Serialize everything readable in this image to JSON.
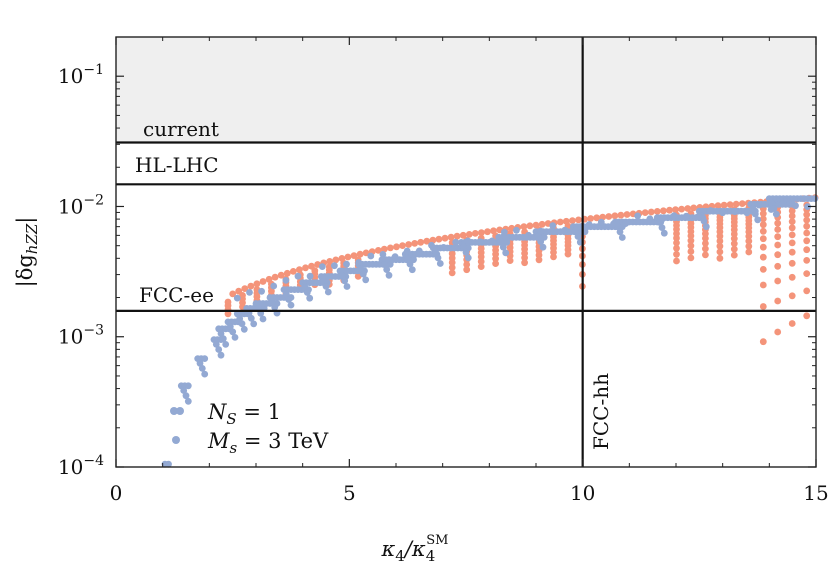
{
  "chart_data": {
    "type": "scatter",
    "title": "",
    "xlabel": "κ4/κ4SM",
    "ylabel": "|δghZZ|",
    "xlim": [
      0,
      15
    ],
    "ylim": [
      0.0001,
      0.2
    ],
    "yscale": "log",
    "x_ticks": [
      0,
      5,
      10,
      15
    ],
    "x_tick_labels": [
      "0",
      "5",
      "10",
      "15"
    ],
    "y_ticks": [
      0.0001,
      0.001,
      0.01,
      0.1
    ],
    "y_tick_labels": [
      {
        "base": "10",
        "exp": "−4"
      },
      {
        "base": "10",
        "exp": "−3"
      },
      {
        "base": "10",
        "exp": "−2"
      },
      {
        "base": "10",
        "exp": "−1"
      }
    ],
    "grid": false,
    "excluded_region": {
      "label": "current",
      "ymin": 0.031,
      "ymax": 0.2,
      "color": "#efefef"
    },
    "horizontal_lines": [
      {
        "label": "current",
        "y": 0.031
      },
      {
        "label": "HL-LHC",
        "y": 0.0148
      },
      {
        "label": "FCC-ee",
        "y": 0.00158
      }
    ],
    "vertical_lines": [
      {
        "label": "FCC-hh",
        "x": 10
      }
    ],
    "legend": {
      "position": "bottom-left",
      "entries": [
        {
          "text": "N_S = 1"
        },
        {
          "text": "M_s = 3 TeV"
        }
      ]
    },
    "series": [
      {
        "color": "#f4947a",
        "description_points": "lower envelope branches",
        "points_sampled_from": "curves y = 3.7e-4 * x^1.3 style family",
        "x_range": [
          2.4,
          15
        ],
        "y_range": [
          0.00085,
          0.0095
        ]
      },
      {
        "color": "#93a9d3",
        "x_range": [
          1.0,
          15
        ],
        "y_range": [
          0.0001,
          0.0115
        ]
      }
    ],
    "colors": {
      "blue": "#93a9d3",
      "orange": "#f4947a"
    }
  },
  "labels": {
    "current": "current",
    "hl_lhc": "HL-LHC",
    "fcc_ee": "FCC-ee",
    "fcc_hh": "FCC-hh",
    "legend_ns": "N",
    "legend_ns_sub": "S",
    "legend_ns_val": " = 1",
    "legend_ms": "M",
    "legend_ms_sub": "s",
    "legend_ms_val": " = 3 TeV",
    "xlabel_main": "κ",
    "xlabel_sub": "4",
    "xlabel_slash": "/κ",
    "xlabel_sub2": "4",
    "xlabel_sup": "SM",
    "ylabel_main": "|δg",
    "ylabel_sub": "hZZ",
    "ylabel_end": "|"
  }
}
